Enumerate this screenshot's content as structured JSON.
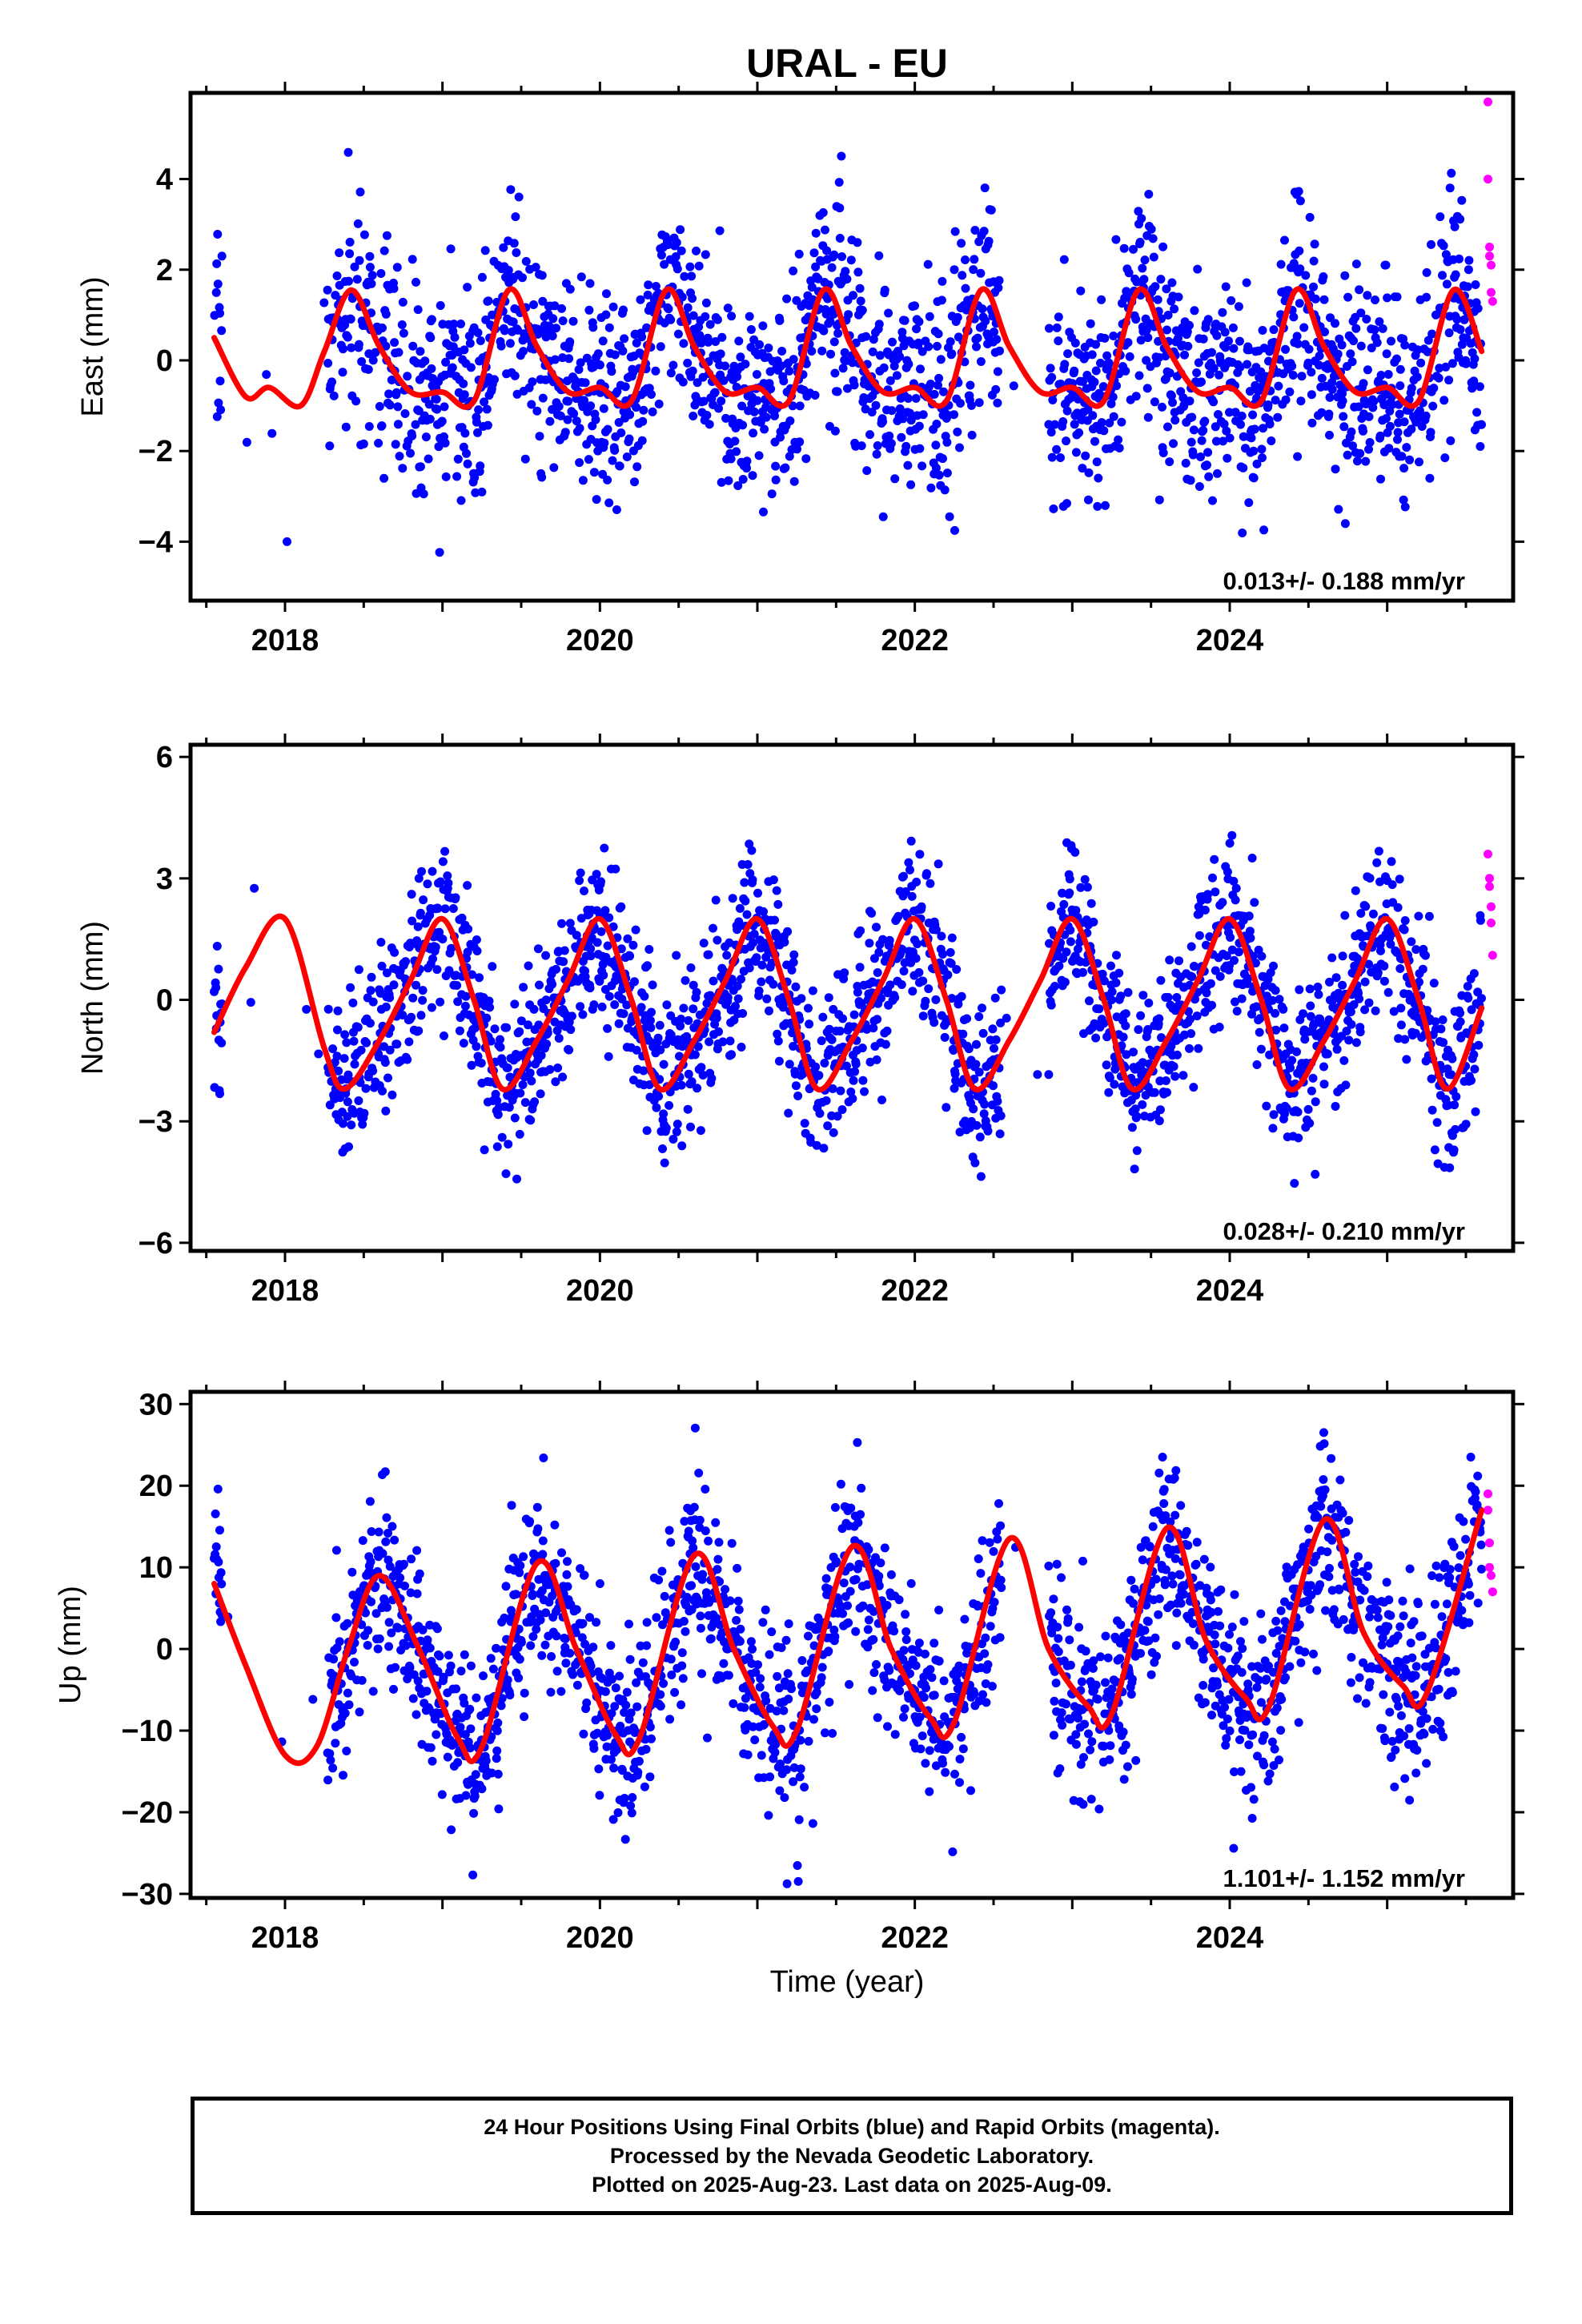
{
  "figure": {
    "title": "URAL - EU",
    "xlabel": "Time (year)"
  },
  "colors": {
    "final_orbits": "#0000ff",
    "rapid_orbits": "#ff00ff",
    "model_fit": "#ff0000",
    "axes": "#000000"
  },
  "footer": {
    "line1": "24 Hour Positions Using Final Orbits (blue) and Rapid Orbits (magenta).",
    "line2": "Processed by the Nevada Geodetic Laboratory.",
    "line3": "Plotted on 2025-Aug-23. Last data on 2025-Aug-09."
  },
  "chart_data": [
    {
      "type": "scatter",
      "name": "east",
      "ylabel": "East (mm)",
      "xlim": [
        2017.4,
        2025.8
      ],
      "ylim": [
        -5.3,
        5.9
      ],
      "x_ticks": [
        2018,
        2020,
        2022,
        2024
      ],
      "x_tick_labels": [
        "2018",
        "2020",
        "2022",
        "2024"
      ],
      "y_ticks": [
        -4,
        -2,
        0,
        2,
        4
      ],
      "y_tick_labels": [
        "−4",
        "−2",
        "0",
        "2",
        "4"
      ],
      "rate_label": "0.013+/- 0.188 mm/yr",
      "data_start": 2017.55,
      "data_end": 2025.6,
      "rapid_start": 2025.62,
      "scatter_sd": 1.15,
      "rapid_points": [
        [
          2025.64,
          5.7
        ],
        [
          2025.64,
          4.0
        ],
        [
          2025.65,
          2.5
        ],
        [
          2025.65,
          2.3
        ],
        [
          2025.66,
          2.1
        ],
        [
          2025.66,
          1.5
        ],
        [
          2025.67,
          1.3
        ]
      ],
      "model_fit": {
        "x": [
          2017.55,
          2017.75,
          2017.9,
          2018.1,
          2018.25,
          2018.42,
          2018.6,
          2018.8,
          2019.0,
          2019.2,
          2019.42,
          2019.6,
          2019.8,
          2020.0,
          2020.2,
          2020.42,
          2020.6,
          2020.8,
          2021.0,
          2021.2,
          2021.42,
          2021.6,
          2021.8,
          2022.0,
          2022.2,
          2022.42,
          2022.6,
          2022.8,
          2023.0,
          2023.2,
          2023.42,
          2023.6,
          2023.8,
          2024.0,
          2024.2,
          2024.42,
          2024.6,
          2024.8,
          2025.0,
          2025.2,
          2025.42,
          2025.6
        ],
        "y": [
          0.5,
          -0.8,
          -0.6,
          -1.0,
          0.2,
          1.55,
          0.3,
          -0.7,
          -0.7,
          -0.9,
          1.55,
          0.3,
          -0.7,
          -0.6,
          -0.9,
          1.55,
          0.3,
          -0.7,
          -0.6,
          -0.9,
          1.55,
          0.3,
          -0.7,
          -0.6,
          -0.9,
          1.55,
          0.3,
          -0.7,
          -0.6,
          -0.9,
          1.55,
          0.3,
          -0.7,
          -0.6,
          -0.9,
          1.55,
          0.3,
          -0.7,
          -0.6,
          -0.9,
          1.55,
          0.2
        ]
      }
    },
    {
      "type": "scatter",
      "name": "north",
      "ylabel": "North (mm)",
      "xlim": [
        2017.4,
        2025.8
      ],
      "ylim": [
        -6.2,
        6.3
      ],
      "x_ticks": [
        2018,
        2020,
        2022,
        2024
      ],
      "x_tick_labels": [
        "2018",
        "2020",
        "2022",
        "2024"
      ],
      "y_ticks": [
        -6,
        -3,
        0,
        3,
        6
      ],
      "y_tick_labels": [
        "−6",
        "−3",
        "0",
        "3",
        "6"
      ],
      "rate_label": "0.028+/- 0.210 mm/yr",
      "data_start": 2017.55,
      "data_end": 2025.6,
      "rapid_start": 2025.62,
      "scatter_sd": 1.0,
      "rapid_points": [
        [
          2025.64,
          3.6
        ],
        [
          2025.65,
          3.0
        ],
        [
          2025.65,
          2.8
        ],
        [
          2025.66,
          2.3
        ],
        [
          2025.66,
          1.9
        ],
        [
          2025.67,
          1.1
        ]
      ],
      "model_fit": {
        "x": [
          2017.55,
          2017.75,
          2018.0,
          2018.25,
          2018.38,
          2018.6,
          2018.8,
          2019.0,
          2019.2,
          2019.38,
          2019.6,
          2019.8,
          2020.0,
          2020.2,
          2020.38,
          2020.6,
          2020.8,
          2021.0,
          2021.2,
          2021.38,
          2021.6,
          2021.8,
          2022.0,
          2022.2,
          2022.38,
          2022.6,
          2022.8,
          2023.0,
          2023.2,
          2023.38,
          2023.6,
          2023.8,
          2024.0,
          2024.2,
          2024.38,
          2024.6,
          2024.8,
          2025.0,
          2025.2,
          2025.38,
          2025.6
        ],
        "y": [
          -0.8,
          0.8,
          2.0,
          -1.2,
          -2.2,
          -1.0,
          0.5,
          2.0,
          0.0,
          -2.2,
          -1.0,
          0.5,
          2.0,
          0.0,
          -2.2,
          -1.0,
          0.5,
          2.0,
          0.0,
          -2.2,
          -1.0,
          0.5,
          2.0,
          0.0,
          -2.2,
          -1.0,
          0.5,
          2.0,
          0.0,
          -2.2,
          -1.0,
          0.5,
          2.0,
          0.0,
          -2.2,
          -1.0,
          0.5,
          2.0,
          0.0,
          -2.2,
          -0.2
        ]
      }
    },
    {
      "type": "scatter",
      "name": "up",
      "ylabel": "Up (mm)",
      "xlim": [
        2017.4,
        2025.8
      ],
      "ylim": [
        -30.5,
        31.5
      ],
      "x_ticks": [
        2018,
        2020,
        2022,
        2024
      ],
      "x_tick_labels": [
        "2018",
        "2020",
        "2022",
        "2024"
      ],
      "y_ticks": [
        -30,
        -20,
        -10,
        0,
        10,
        20,
        30
      ],
      "y_tick_labels": [
        "−30",
        "−20",
        "−10",
        "0",
        "10",
        "20",
        "30"
      ],
      "rate_label": "1.101+/- 1.152 mm/yr",
      "data_start": 2017.55,
      "data_end": 2025.6,
      "rapid_start": 2025.62,
      "scatter_sd": 5.5,
      "rapid_points": [
        [
          2025.64,
          19.0
        ],
        [
          2025.64,
          17.0
        ],
        [
          2025.65,
          13.0
        ],
        [
          2025.65,
          10.0
        ],
        [
          2025.66,
          9.0
        ],
        [
          2025.67,
          7.0
        ]
      ],
      "model_fit": {
        "x": [
          2017.55,
          2017.75,
          2018.0,
          2018.2,
          2018.4,
          2018.6,
          2018.85,
          2019.1,
          2019.25,
          2019.6,
          2019.85,
          2020.1,
          2020.25,
          2020.6,
          2020.85,
          2021.1,
          2021.25,
          2021.6,
          2021.85,
          2022.1,
          2022.25,
          2022.6,
          2022.85,
          2023.1,
          2023.25,
          2023.6,
          2023.85,
          2024.1,
          2024.25,
          2024.6,
          2024.85,
          2025.1,
          2025.25,
          2025.6
        ],
        "y": [
          8.0,
          -2.0,
          -13.0,
          -12.0,
          0.0,
          9.0,
          0.0,
          -11.0,
          -12.0,
          10.5,
          0.0,
          -10.5,
          -11.0,
          11.5,
          0.0,
          -9.5,
          -10.0,
          12.5,
          0.0,
          -8.5,
          -9.0,
          13.5,
          0.0,
          -7.0,
          -8.0,
          14.8,
          1.0,
          -6.0,
          -7.0,
          15.8,
          2.0,
          -4.5,
          -5.5,
          17.0
        ]
      }
    }
  ]
}
